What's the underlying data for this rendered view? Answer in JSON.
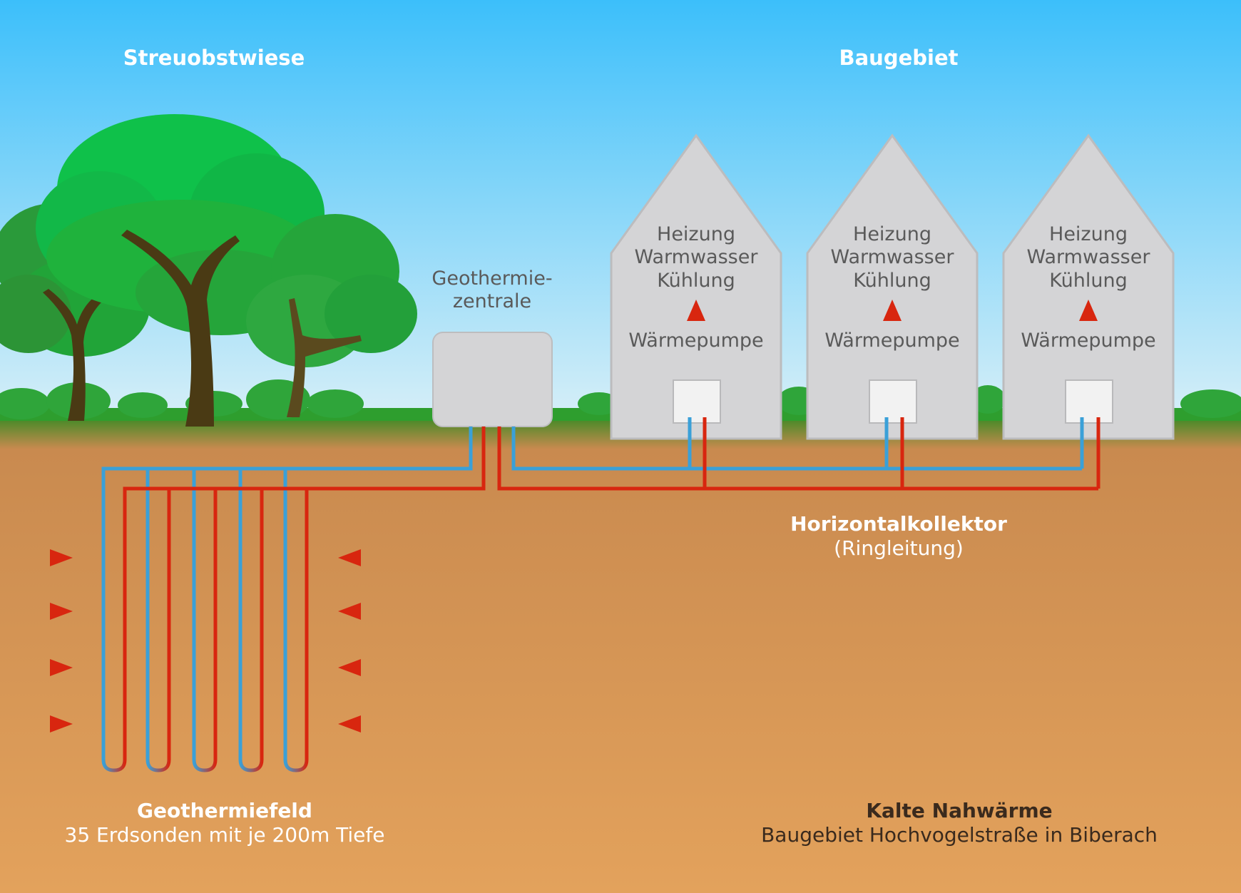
{
  "labels": {
    "orchard": "Streuobstwiese",
    "building_area": "Baugebiet",
    "center_line1": "Geothermie-",
    "center_line2": "zentrale",
    "collector_title": "Horizontalkollektor",
    "collector_sub": "(Ringleitung)",
    "field_title": "Geothermiefeld",
    "field_sub": "35 Erdsonden mit je 200m Tiefe",
    "project_title": "Kalte Nahwärme",
    "project_sub": "Baugebiet Hochvogelstraße in Biberach"
  },
  "houses": [
    {
      "uses": [
        "Heizung",
        "Warmwasser",
        "Kühlung"
      ],
      "pump": "Wärmepumpe"
    },
    {
      "uses": [
        "Heizung",
        "Warmwasser",
        "Kühlung"
      ],
      "pump": "Wärmepumpe"
    },
    {
      "uses": [
        "Heizung",
        "Warmwasser",
        "Kühlung"
      ],
      "pump": "Wärmepumpe"
    }
  ],
  "colors": {
    "sky_top": "#3cbffa",
    "sky_bottom": "#d7eff8",
    "grass": "#2e9e2e",
    "soil_top": "#c98a4f",
    "soil_bottom": "#e3a25c",
    "house": "#d4d4d6",
    "cold_pipe": "#3aa0d8",
    "warm_pipe": "#d8260f",
    "tree_green": "#1fb23c",
    "trunk": "#4a3a14"
  }
}
